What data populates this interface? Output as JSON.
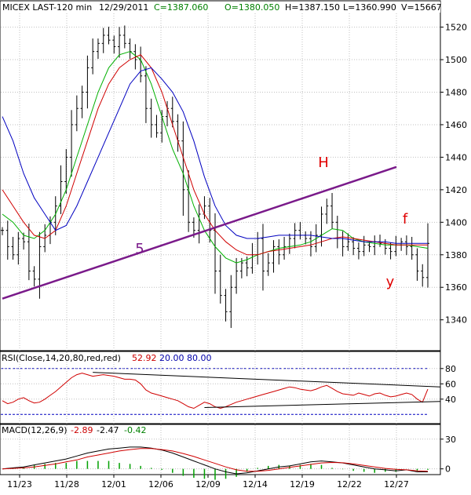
{
  "colors": {
    "background": "#ffffff",
    "frame": "#000000",
    "grid": "#c0c0c0",
    "bar": "#000000",
    "ma_green": "#00b000",
    "ma_red": "#d00000",
    "ma_blue": "#0000c0",
    "trendline": "#7a1a8a",
    "annotation_red": "#e00000",
    "rsi_line": "#d00000",
    "rsi_bounds": "#0000c0",
    "macd_line": "#000000",
    "signal_line": "#d00000",
    "histogram": "#00a000",
    "header_green": "#008000",
    "header_red": "#cc0000",
    "header_blue": "#0000aa"
  },
  "header": {
    "symbol": "MICEX LAST-120 min",
    "date": "12/29/2011",
    "close": "C=1387.060",
    "open": "O=1380.050",
    "high": "H=1387.150",
    "low": "L=1360.990",
    "volume": "V=15667"
  },
  "rsi_legend": {
    "label": "RSI(Close,14,20,80,red,red)",
    "value": "52.92",
    "low": "20.00",
    "high": "80.00"
  },
  "macd_legend": {
    "label": "MACD(12,26,9)",
    "macd": "-2.89",
    "signal": "-2.47",
    "hist": "-0.42"
  },
  "x_ticks": [
    "11/23",
    "11/28",
    "12/01",
    "12/06",
    "12/09",
    "12/14",
    "12/19",
    "12/22",
    "12/27"
  ],
  "chart_data": [
    {
      "panel": "price",
      "type": "candlestick",
      "title": "MICEX LAST-120 min",
      "x_categories": [
        "11/23",
        "11/28",
        "12/01",
        "12/06",
        "12/09",
        "12/14",
        "12/19",
        "12/22",
        "12/27"
      ],
      "ylim": [
        1322,
        1528
      ],
      "y_ticks": [
        1340,
        1360,
        1380,
        1400,
        1420,
        1440,
        1460,
        1480,
        1500,
        1520
      ],
      "last_bar": {
        "date": "12/29/2011",
        "open": 1380.05,
        "high": 1387.15,
        "low": 1360.99,
        "close": 1387.06,
        "volume": 15667
      },
      "close_path": [
        1395,
        1385,
        1380,
        1390,
        1388,
        1370,
        1365,
        1385,
        1392,
        1400,
        1410,
        1425,
        1440,
        1460,
        1470,
        1480,
        1495,
        1505,
        1510,
        1515,
        1512,
        1508,
        1515,
        1510,
        1505,
        1500,
        1490,
        1470,
        1460,
        1455,
        1465,
        1470,
        1462,
        1450,
        1420,
        1400,
        1395,
        1405,
        1410,
        1395,
        1370,
        1355,
        1345,
        1360,
        1370,
        1375,
        1372,
        1380,
        1390,
        1370,
        1375,
        1385,
        1380,
        1385,
        1390,
        1395,
        1392,
        1390,
        1385,
        1392,
        1405,
        1410,
        1400,
        1390,
        1385,
        1388,
        1384,
        1382,
        1386,
        1385,
        1388,
        1387,
        1384,
        1382,
        1386,
        1388,
        1385,
        1380,
        1370,
        1366,
        1387
      ],
      "ma_series": [
        {
          "color": "green",
          "values": [
            1405,
            1400,
            1392,
            1390,
            1395,
            1405,
            1420,
            1440,
            1460,
            1480,
            1495,
            1503,
            1505,
            1500,
            1485,
            1465,
            1445,
            1430,
            1410,
            1395,
            1385,
            1378,
            1375,
            1377,
            1380,
            1382,
            1384,
            1385,
            1386,
            1388,
            1392,
            1396,
            1395,
            1390,
            1388,
            1387,
            1386,
            1386,
            1386,
            1385,
            1384
          ]
        },
        {
          "color": "red",
          "values": [
            1420,
            1410,
            1400,
            1392,
            1390,
            1395,
            1410,
            1430,
            1450,
            1470,
            1485,
            1495,
            1500,
            1503,
            1495,
            1480,
            1460,
            1440,
            1420,
            1405,
            1395,
            1388,
            1383,
            1380,
            1380,
            1382,
            1383,
            1384,
            1385,
            1386,
            1388,
            1390,
            1391,
            1390,
            1389,
            1388,
            1387,
            1386,
            1386,
            1386,
            1386
          ]
        },
        {
          "color": "blue",
          "values": [
            1465,
            1450,
            1430,
            1415,
            1405,
            1395,
            1398,
            1410,
            1425,
            1440,
            1455,
            1470,
            1485,
            1493,
            1495,
            1488,
            1480,
            1468,
            1450,
            1428,
            1410,
            1398,
            1392,
            1390,
            1390,
            1391,
            1392,
            1392,
            1392,
            1392,
            1391,
            1390,
            1390,
            1389,
            1388,
            1388,
            1388,
            1387,
            1387,
            1387,
            1387
          ]
        }
      ],
      "trendline": {
        "start": {
          "bar": 0,
          "value": 1353
        },
        "end": {
          "bar": 80,
          "value": 1434
        }
      },
      "annotations": [
        {
          "text": "5",
          "color": "purple"
        },
        {
          "text": "H",
          "color": "red"
        },
        {
          "text": "f",
          "color": "red"
        },
        {
          "text": "y",
          "color": "red"
        }
      ]
    },
    {
      "panel": "rsi",
      "type": "line",
      "title": "RSI(Close,14,20,80,red,red)",
      "ylim": [
        8,
        88
      ],
      "y_ticks": [
        40,
        60,
        80
      ],
      "upper_bound": 80,
      "lower_bound": 20,
      "last_value": 52.92,
      "values": [
        38,
        34,
        36,
        40,
        42,
        38,
        35,
        36,
        40,
        45,
        50,
        56,
        62,
        68,
        72,
        74,
        72,
        70,
        71,
        72,
        71,
        70,
        68,
        66,
        66,
        65,
        60,
        52,
        48,
        46,
        44,
        42,
        40,
        38,
        34,
        30,
        28,
        32,
        36,
        34,
        30,
        28,
        30,
        33,
        36,
        38,
        40,
        42,
        44,
        46,
        48,
        50,
        52,
        54,
        56,
        55,
        53,
        52,
        51,
        53,
        56,
        58,
        54,
        50,
        47,
        46,
        45,
        48,
        46,
        44,
        47,
        48,
        45,
        43,
        44,
        46,
        48,
        46,
        40,
        36,
        53
      ],
      "trendlines": [
        {
          "start": {
            "bar": 17,
            "value": 75
          },
          "end": {
            "bar": 80,
            "value": 56
          }
        },
        {
          "start": {
            "bar": 38,
            "value": 29
          },
          "end": {
            "bar": 80,
            "value": 37
          }
        }
      ]
    },
    {
      "panel": "macd",
      "type": "line",
      "title": "MACD(12,26,9)",
      "ylim": [
        -5,
        33
      ],
      "y_ticks": [
        0,
        30
      ],
      "series": [
        {
          "name": "MACD",
          "values": [
            0,
            1,
            2,
            4,
            6,
            8,
            10,
            13,
            16,
            18,
            20,
            21,
            22,
            22,
            21,
            19,
            16,
            12,
            8,
            4,
            0,
            -3,
            -5,
            -4,
            -2,
            0,
            2,
            3,
            5,
            7,
            8,
            7,
            6,
            4,
            2,
            0,
            -1,
            -2,
            -1,
            -3,
            -3
          ]
        },
        {
          "name": "Signal",
          "values": [
            0,
            0.5,
            1,
            2,
            3.5,
            5,
            7,
            9,
            12,
            14,
            16,
            18,
            19.5,
            20.5,
            20.5,
            19.5,
            18,
            15.5,
            12.5,
            9,
            5.5,
            2,
            -1,
            -2.5,
            -2.5,
            -1.5,
            0,
            1.5,
            3,
            4.5,
            6,
            6.5,
            6.2,
            5,
            3.5,
            2,
            0.5,
            -0.5,
            -1,
            -2,
            -2.5
          ]
        }
      ],
      "last_values": {
        "macd": -2.89,
        "signal": -2.47,
        "hist": -0.42
      }
    }
  ]
}
